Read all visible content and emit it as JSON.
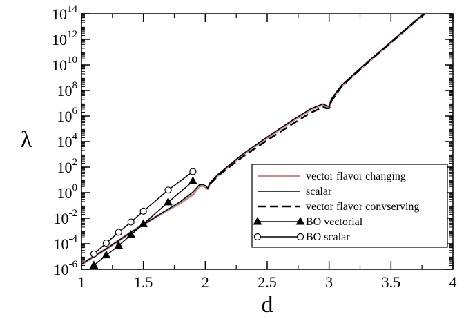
{
  "chart_data": {
    "type": "line",
    "xlabel": "d",
    "ylabel": "λ",
    "xlim": [
      1,
      4
    ],
    "ylim_log10": [
      -6,
      14
    ],
    "yscale": "log",
    "x_ticks": [
      1,
      1.5,
      2,
      2.5,
      3,
      3.5,
      4
    ],
    "x_tick_labels": [
      "1",
      "1.5",
      "2",
      "2.5",
      "3",
      "3.5",
      "4"
    ],
    "y_ticks_log10": [
      -6,
      -4,
      -2,
      0,
      2,
      4,
      6,
      8,
      10,
      12,
      14
    ],
    "y_tick_base": "10",
    "y_tick_exponents": [
      "-6",
      "-4",
      "-2",
      "0",
      "2",
      "4",
      "6",
      "8",
      "10",
      "12",
      "14"
    ],
    "legend": {
      "placement": "bottom-right",
      "entries": [
        "vector flavor changing",
        "scalar",
        "vector flavor convserving",
        "BO vectorial",
        "BO scalar"
      ]
    },
    "series": [
      {
        "name": "vector flavor changing",
        "color": "#c09090",
        "style": "solid-thick",
        "points": [
          [
            1.0,
            -5.6
          ],
          [
            1.2,
            -4.4
          ],
          [
            1.4,
            -3.1
          ],
          [
            1.6,
            -1.9
          ],
          [
            1.8,
            -0.8
          ],
          [
            1.9,
            -0.15
          ],
          [
            1.95,
            0.5
          ],
          [
            1.98,
            0.55
          ],
          [
            2.0,
            0.45
          ],
          [
            2.02,
            0.3
          ],
          [
            2.04,
            0.75
          ],
          [
            2.1,
            1.35
          ],
          [
            2.3,
            2.95
          ],
          [
            2.5,
            4.3
          ],
          [
            2.7,
            5.6
          ],
          [
            2.85,
            6.5
          ],
          [
            2.95,
            6.9
          ],
          [
            2.98,
            6.75
          ],
          [
            3.0,
            6.7
          ],
          [
            3.02,
            7.3
          ],
          [
            3.1,
            8.35
          ],
          [
            3.3,
            10.1
          ],
          [
            3.5,
            11.75
          ],
          [
            3.7,
            13.45
          ],
          [
            3.77,
            14.0
          ]
        ]
      },
      {
        "name": "scalar",
        "color": "#000000",
        "style": "solid",
        "points": [
          [
            1.0,
            -5.6
          ],
          [
            1.2,
            -4.4
          ],
          [
            1.4,
            -3.1
          ],
          [
            1.6,
            -1.9
          ],
          [
            1.8,
            -0.7
          ],
          [
            1.9,
            0.05
          ],
          [
            1.95,
            0.6
          ],
          [
            1.98,
            0.65
          ],
          [
            2.0,
            0.55
          ],
          [
            2.02,
            0.35
          ],
          [
            2.04,
            0.8
          ],
          [
            2.1,
            1.4
          ],
          [
            2.3,
            3.0
          ],
          [
            2.5,
            4.35
          ],
          [
            2.7,
            5.65
          ],
          [
            2.85,
            6.55
          ],
          [
            2.95,
            6.95
          ],
          [
            2.98,
            6.8
          ],
          [
            3.0,
            6.75
          ],
          [
            3.02,
            7.35
          ],
          [
            3.1,
            8.4
          ],
          [
            3.3,
            10.15
          ],
          [
            3.5,
            11.8
          ],
          [
            3.7,
            13.5
          ],
          [
            3.77,
            14.0
          ]
        ]
      },
      {
        "name": "vector flavor convserving",
        "color": "#000000",
        "style": "dashed",
        "points": [
          [
            2.04,
            0.7
          ],
          [
            2.1,
            1.3
          ],
          [
            2.3,
            2.8
          ],
          [
            2.5,
            4.1
          ],
          [
            2.7,
            5.35
          ],
          [
            2.85,
            6.25
          ],
          [
            2.95,
            6.7
          ],
          [
            2.98,
            6.6
          ],
          [
            3.0,
            6.6
          ],
          [
            3.02,
            7.2
          ],
          [
            3.1,
            8.3
          ],
          [
            3.3,
            10.1
          ],
          [
            3.5,
            11.75
          ],
          [
            3.7,
            13.45
          ],
          [
            3.77,
            14.0
          ]
        ]
      },
      {
        "name": "BO vectorial",
        "color": "#000000",
        "style": "solid-triangle",
        "points": [
          [
            1.1,
            -5.7
          ],
          [
            1.2,
            -4.9
          ],
          [
            1.3,
            -4.15
          ],
          [
            1.4,
            -3.3
          ],
          [
            1.5,
            -2.45
          ],
          [
            1.7,
            -0.75
          ],
          [
            1.9,
            0.9
          ]
        ]
      },
      {
        "name": "BO scalar",
        "color": "#000000",
        "style": "solid-circle",
        "points": [
          [
            1.1,
            -4.8
          ],
          [
            1.2,
            -3.95
          ],
          [
            1.3,
            -3.1
          ],
          [
            1.4,
            -2.3
          ],
          [
            1.5,
            -1.45
          ],
          [
            1.7,
            0.2
          ],
          [
            1.9,
            1.65
          ]
        ]
      }
    ]
  }
}
